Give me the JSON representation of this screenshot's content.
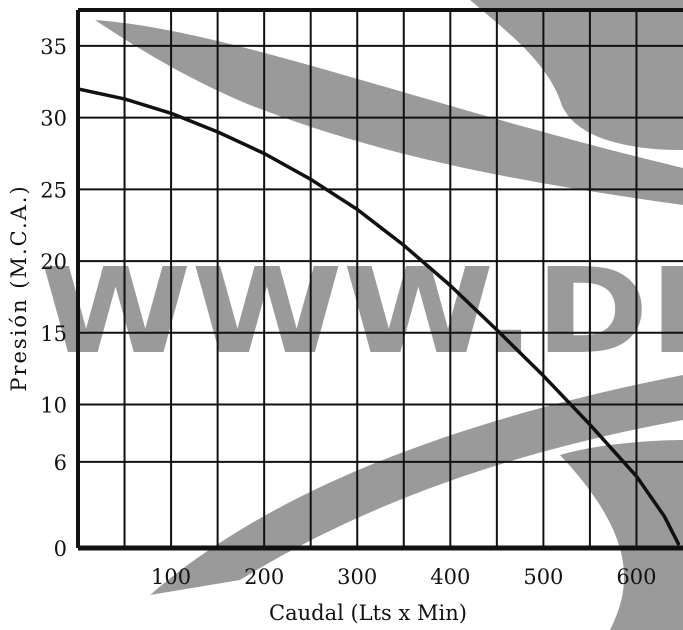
{
  "chart_data": {
    "type": "line",
    "xlabel": "Caudal (Lts x Min)",
    "ylabel": "Presión (M.C.A.)",
    "x_ticks": [
      100,
      200,
      300,
      400,
      500,
      600
    ],
    "y_ticks": [
      0,
      6,
      10,
      15,
      20,
      25,
      30,
      35
    ],
    "xlim": [
      0,
      650
    ],
    "ylim": [
      0,
      37.5
    ],
    "grid": true,
    "series": [
      {
        "x": [
          0,
          50,
          100,
          150,
          200,
          250,
          300,
          350,
          400,
          450,
          500,
          550,
          600,
          630,
          645
        ],
        "y": [
          32,
          31.3,
          30.3,
          29,
          27.5,
          25.7,
          23.6,
          21.1,
          18.3,
          15.2,
          12,
          8.6,
          5,
          2.2,
          0.3
        ]
      }
    ],
    "colors": {
      "line": "#111111",
      "grid": "#111111",
      "watermark": "#9a9a9a"
    },
    "watermark": {
      "text": "WWW.DI"
    }
  }
}
